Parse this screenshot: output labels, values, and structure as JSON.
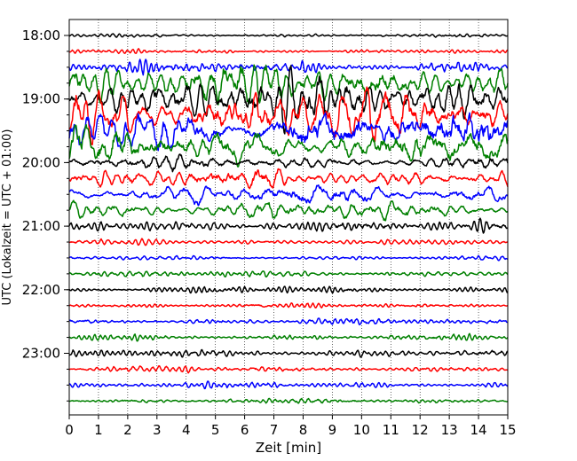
{
  "chart_data": {
    "type": "line",
    "title": "",
    "xlabel": "Zeit  [min]",
    "ylabel": "UTC (Lokalzeit = UTC + 01:00)",
    "xlim": [
      0,
      15
    ],
    "x_ticks": [
      0,
      1,
      2,
      3,
      4,
      5,
      6,
      7,
      8,
      9,
      10,
      11,
      12,
      13,
      14,
      15
    ],
    "y_ticks": [
      "18:00",
      "19:00",
      "20:00",
      "21:00",
      "22:00",
      "23:00"
    ],
    "grid": "vertical dotted",
    "legend": "none",
    "trace_interval_minutes": 15,
    "first_trace": "18:00",
    "last_trace": "23:45",
    "trace_colors": [
      "#000000",
      "#ff0000",
      "#0000ff",
      "#008000"
    ],
    "traces": [
      {
        "start": "18:00",
        "amplitude": 0.12
      },
      {
        "start": "18:15",
        "amplitude": 0.12
      },
      {
        "start": "18:30",
        "amplitude": 0.35
      },
      {
        "start": "18:45",
        "amplitude": 1.2
      },
      {
        "start": "19:00",
        "amplitude": 1.3
      },
      {
        "start": "19:15",
        "amplitude": 1.4
      },
      {
        "start": "19:30",
        "amplitude": 1.4
      },
      {
        "start": "19:45",
        "amplitude": 1.1
      },
      {
        "start": "20:00",
        "amplitude": 0.45
      },
      {
        "start": "20:15",
        "amplitude": 0.55
      },
      {
        "start": "20:30",
        "amplitude": 0.6
      },
      {
        "start": "20:45",
        "amplitude": 0.5
      },
      {
        "start": "21:00",
        "amplitude": 0.3
      },
      {
        "start": "21:15",
        "amplitude": 0.15
      },
      {
        "start": "21:30",
        "amplitude": 0.12
      },
      {
        "start": "21:45",
        "amplitude": 0.18
      },
      {
        "start": "22:00",
        "amplitude": 0.2
      },
      {
        "start": "22:15",
        "amplitude": 0.15
      },
      {
        "start": "22:30",
        "amplitude": 0.2
      },
      {
        "start": "22:45",
        "amplitude": 0.18
      },
      {
        "start": "23:00",
        "amplitude": 0.2
      },
      {
        "start": "23:15",
        "amplitude": 0.18
      },
      {
        "start": "23:30",
        "amplitude": 0.18
      },
      {
        "start": "23:45",
        "amplitude": 0.18
      }
    ]
  }
}
